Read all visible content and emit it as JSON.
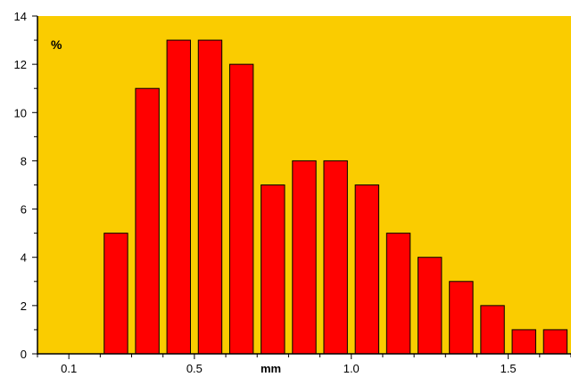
{
  "chart_data": {
    "type": "bar",
    "y_unit_label": "%",
    "x_unit_label": "mm",
    "ylim": [
      0,
      14
    ],
    "yticks": [
      0,
      2,
      4,
      6,
      8,
      10,
      12,
      14
    ],
    "xlim": [
      0,
      1.7
    ],
    "xticks": [
      {
        "value": 0.1,
        "label": "0.1"
      },
      {
        "value": 0.5,
        "label": "0.5"
      },
      {
        "value": 1.0,
        "label": "1.0"
      },
      {
        "value": 1.5,
        "label": "1.5"
      }
    ],
    "bin_width": 0.1,
    "bins": [
      {
        "x": 0.25,
        "value": 5
      },
      {
        "x": 0.35,
        "value": 11
      },
      {
        "x": 0.45,
        "value": 13
      },
      {
        "x": 0.55,
        "value": 13
      },
      {
        "x": 0.65,
        "value": 12
      },
      {
        "x": 0.75,
        "value": 7
      },
      {
        "x": 0.85,
        "value": 8
      },
      {
        "x": 0.95,
        "value": 8
      },
      {
        "x": 1.05,
        "value": 7
      },
      {
        "x": 1.15,
        "value": 5
      },
      {
        "x": 1.25,
        "value": 4
      },
      {
        "x": 1.35,
        "value": 3
      },
      {
        "x": 1.45,
        "value": 2
      },
      {
        "x": 1.55,
        "value": 1
      },
      {
        "x": 1.65,
        "value": 1
      }
    ],
    "grid": false,
    "plot_background": "#FACC00",
    "bar_color": "#FF0000",
    "bar_edge_color": "#000000"
  }
}
